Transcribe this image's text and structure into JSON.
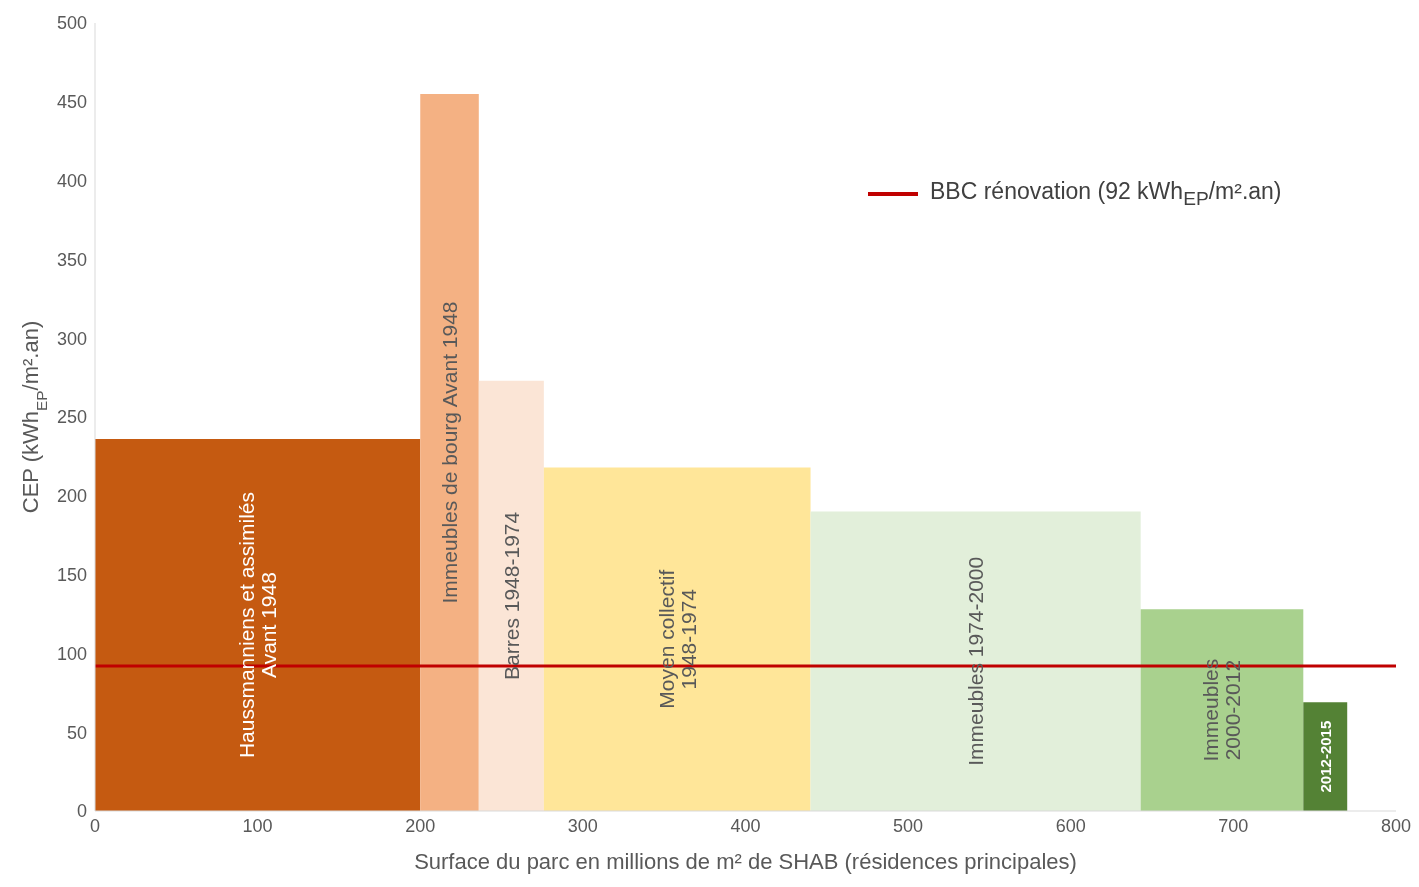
{
  "chart_data": {
    "type": "histogram",
    "xlabel": "Surface du parc en millions de m² de SHAB (résidences principales)",
    "ylabel": "CEP (kWh$_{EP}$/m².an)",
    "bins": [
      0,
      200,
      236,
      276,
      440,
      643,
      743,
      770
    ],
    "values": [
      236,
      455,
      273,
      218,
      190,
      128,
      69
    ],
    "colors": [
      "#c55a11",
      "#f4b183",
      "#fbe5d6",
      "#ffe699",
      "#e2efda",
      "#a9d18e",
      "#548235"
    ],
    "xlim": [
      0,
      800
    ],
    "xticks": [
      0,
      100,
      200,
      300,
      400,
      500,
      600,
      700,
      800
    ],
    "ylim": [
      0,
      500
    ],
    "yticks": [
      0,
      50,
      100,
      150,
      200,
      250,
      300,
      350,
      400,
      450,
      500
    ],
    "grid": false,
    "ref_lines": [
      {
        "axis": "y",
        "value": 92,
        "label": "BBC rénovation (92 kWh$_{EP}$/m².an)",
        "color": "#c00000"
      }
    ],
    "annotations": [
      "Haussmanniens et assimilés\nAvant 1948",
      "Immeubles de bourg Avant 1948",
      "Barres 1948-1974",
      "Moyen collectif\n1948-1974",
      "Immeubles 1974-2000",
      "Immeubles\n2000-2012",
      "2012-2015"
    ]
  }
}
